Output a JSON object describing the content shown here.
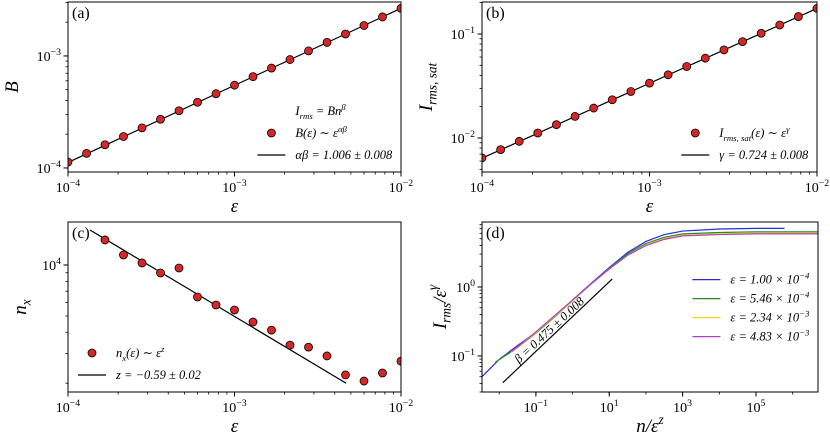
{
  "chart_data": [
    {
      "type": "scatter",
      "title": "(a)",
      "xlabel": [
        {
          "t": "ε"
        }
      ],
      "ylabel": [
        {
          "t": "B"
        }
      ],
      "xscale": "log",
      "yscale": "log",
      "xlim": [
        0.0001,
        0.01
      ],
      "ylim": [
        9.2e-05,
        0.00303
      ],
      "xticks": [
        {
          "value": 0.0001,
          "label": [
            {
              "t": "10"
            },
            {
              "sup": "−4"
            }
          ]
        },
        {
          "value": 0.001,
          "label": [
            {
              "t": "10"
            },
            {
              "sup": "−3"
            }
          ]
        },
        {
          "value": 0.01,
          "label": [
            {
              "t": "10"
            },
            {
              "sup": "−2"
            }
          ]
        }
      ],
      "yticks": [
        {
          "value": 0.0001,
          "label": [
            {
              "t": "10"
            },
            {
              "sup": "−4"
            }
          ]
        },
        {
          "value": 0.001,
          "label": [
            {
              "t": "10"
            },
            {
              "sup": "−3"
            }
          ]
        }
      ],
      "legend": "lower right",
      "legend_title": [
        {
          "t": "I"
        },
        {
          "sub": "rms"
        },
        {
          "t": " = Bn"
        },
        {
          "sup": "β"
        }
      ],
      "series": [
        {
          "name": [
            {
              "t": "B(ε) ∼ ε"
            },
            {
              "sup": "αβ"
            }
          ],
          "marker": "circle",
          "color": "#d62728",
          "edgecolor": "#000000",
          "x": [
            0.0001,
            0.0001292,
            0.0001668,
            0.0002154,
            0.0002783,
            0.0003594,
            0.0004642,
            0.0005995,
            0.0007743,
            0.001,
            0.001292,
            0.001668,
            0.002154,
            0.002783,
            0.003594,
            0.004642,
            0.005995,
            0.007743,
            0.01
          ],
          "values": [
            0.000113,
            0.000135,
            0.000161,
            0.000191,
            0.000228,
            0.000272,
            0.000324,
            0.000386,
            0.00046,
            0.000548,
            0.000653,
            0.000779,
            0.000928,
            0.00111,
            0.00132,
            0.00157,
            0.00187,
            0.00223,
            0.00266
          ]
        },
        {
          "name": [
            {
              "t": "αβ = 1.006 ± 0.008"
            }
          ],
          "marker": "line",
          "color": "#000000",
          "x": [
            0.0001,
            0.01
          ],
          "values": [
            0.000112,
            0.00266
          ]
        }
      ]
    },
    {
      "type": "scatter",
      "title": "(b)",
      "xlabel": [
        {
          "t": "ε"
        }
      ],
      "ylabel": [
        {
          "t": "I"
        },
        {
          "sub": "rms, sat"
        }
      ],
      "xscale": "log",
      "yscale": "log",
      "xlim": [
        0.0001,
        0.01
      ],
      "ylim": [
        0.00471,
        0.203
      ],
      "xticks": [
        {
          "value": 0.0001,
          "label": [
            {
              "t": "10"
            },
            {
              "sup": "−4"
            }
          ]
        },
        {
          "value": 0.001,
          "label": [
            {
              "t": "10"
            },
            {
              "sup": "−3"
            }
          ]
        },
        {
          "value": 0.01,
          "label": [
            {
              "t": "10"
            },
            {
              "sup": "−2"
            }
          ]
        }
      ],
      "yticks": [
        {
          "value": 0.01,
          "label": [
            {
              "t": "10"
            },
            {
              "sup": "−2"
            }
          ]
        },
        {
          "value": 0.1,
          "label": [
            {
              "t": "10"
            },
            {
              "sup": "−1"
            }
          ]
        }
      ],
      "legend": "lower right",
      "series": [
        {
          "name": [
            {
              "t": "I"
            },
            {
              "sub": "rms, sat"
            },
            {
              "t": "(ε) ∼ ε"
            },
            {
              "sup": "γ"
            }
          ],
          "marker": "circle",
          "color": "#d62728",
          "edgecolor": "#000000",
          "x": [
            0.0001,
            0.0001292,
            0.0001668,
            0.0002154,
            0.0002783,
            0.0003594,
            0.0004642,
            0.0005995,
            0.0007743,
            0.001,
            0.001292,
            0.001668,
            0.002154,
            0.002783,
            0.003594,
            0.004642,
            0.005995,
            0.007743,
            0.01
          ],
          "values": [
            0.00643,
            0.00773,
            0.00929,
            0.01117,
            0.01343,
            0.01614,
            0.0194,
            0.0233,
            0.028,
            0.0337,
            0.0405,
            0.0487,
            0.0585,
            0.0703,
            0.0845,
            0.1016,
            0.1221,
            0.147,
            0.176
          ]
        },
        {
          "name": [
            {
              "t": "γ = 0.724 ± 0.008"
            }
          ],
          "marker": "line",
          "color": "#000000",
          "x": [
            0.0001,
            0.01
          ],
          "values": [
            0.0064,
            0.176
          ]
        }
      ]
    },
    {
      "type": "scatter",
      "title": "(c)",
      "xlabel": [
        {
          "t": "ε"
        }
      ],
      "ylabel": [
        {
          "t": "n"
        },
        {
          "sub": "x"
        }
      ],
      "xscale": "log",
      "yscale": "log",
      "xlim": [
        0.0001,
        0.01
      ],
      "ylim": [
        1775,
        17950
      ],
      "xticks": [
        {
          "value": 0.0001,
          "label": [
            {
              "t": "10"
            },
            {
              "sup": "−4"
            }
          ]
        },
        {
          "value": 0.001,
          "label": [
            {
              "t": "10"
            },
            {
              "sup": "−3"
            }
          ]
        },
        {
          "value": 0.01,
          "label": [
            {
              "t": "10"
            },
            {
              "sup": "−2"
            }
          ]
        }
      ],
      "yticks": [
        {
          "value": 10000,
          "label": [
            {
              "t": "10"
            },
            {
              "sup": "4"
            }
          ]
        }
      ],
      "legend": "lower left",
      "series": [
        {
          "name": [
            {
              "t": "n"
            },
            {
              "sub": "x"
            },
            {
              "t": "(ε) ∼ ε"
            },
            {
              "sup": "z"
            }
          ],
          "marker": "circle",
          "color": "#d62728",
          "edgecolor": "#000000",
          "x": [
            0.0001668,
            0.0002154,
            0.0002783,
            0.0003594,
            0.0004642,
            0.0005995,
            0.0007743,
            0.001,
            0.001292,
            0.001668,
            0.002154,
            0.002783,
            0.003594,
            0.004642,
            0.005995,
            0.007743,
            0.01
          ],
          "values": [
            14060,
            11460,
            10280,
            8970,
            9600,
            6470,
            5800,
            5420,
            4600,
            4120,
            3360,
            3270,
            2900,
            2240,
            2060,
            2300,
            2700
          ]
        },
        {
          "name": [
            {
              "t": "z = −0.59 ± 0.02"
            }
          ],
          "marker": "line",
          "color": "#000000",
          "x": [
            0.0001355,
            0.00468
          ],
          "values": [
            16100,
            2000
          ]
        }
      ]
    },
    {
      "type": "line",
      "title": "(d)",
      "xlabel": [
        {
          "t": "n/ε"
        },
        {
          "sup": "z"
        }
      ],
      "ylabel": [
        {
          "t": "I"
        },
        {
          "sub": "rms"
        },
        {
          "t": "/ε"
        },
        {
          "sup": "γ"
        }
      ],
      "xscale": "log",
      "yscale": "log",
      "xlim": [
        0.0034,
        4900000
      ],
      "ylim": [
        0.03,
        8.75
      ],
      "xticks": [
        {
          "value": 0.1,
          "label": [
            {
              "t": "10"
            },
            {
              "sup": "−1"
            }
          ]
        },
        {
          "value": 10,
          "label": [
            {
              "t": "10"
            },
            {
              "sup": "1"
            }
          ]
        },
        {
          "value": 1000,
          "label": [
            {
              "t": "10"
            },
            {
              "sup": "3"
            }
          ]
        },
        {
          "value": 100000,
          "label": [
            {
              "t": "10"
            },
            {
              "sup": "5"
            }
          ]
        }
      ],
      "yticks": [
        {
          "value": 0.1,
          "label": [
            {
              "t": "10"
            },
            {
              "sup": "−1"
            }
          ]
        },
        {
          "value": 1,
          "label": [
            {
              "t": "10"
            },
            {
              "sup": "0"
            }
          ]
        }
      ],
      "legend": "center right",
      "annotations": [
        {
          "text": "β = 0.475 ± 0.008"
        }
      ],
      "series": [
        {
          "name": [
            {
              "t": "ε = 1.00 × 10"
            },
            {
              "sup": "−4"
            }
          ],
          "marker": "line",
          "color": "#2a2ad6",
          "x": [
            0.0034,
            0.01,
            0.0316,
            0.1,
            0.316,
            1,
            3.16,
            10,
            31.6,
            100,
            316,
            1000,
            10000,
            100000,
            600000
          ],
          "values": [
            0.05,
            0.089,
            0.141,
            0.219,
            0.372,
            0.646,
            1.12,
            1.91,
            3.16,
            4.57,
            5.75,
            6.46,
            6.92,
            7.08,
            7.08
          ]
        },
        {
          "name": [
            {
              "t": "ε = 5.46 × 10"
            },
            {
              "sup": "−4"
            }
          ],
          "marker": "line",
          "color": "#228b22",
          "x": [
            0.0078,
            0.0316,
            0.1,
            0.316,
            1,
            3.16,
            10,
            31.6,
            100,
            316,
            1000,
            10000,
            100000,
            4900000
          ],
          "values": [
            0.081,
            0.132,
            0.214,
            0.363,
            0.631,
            1.1,
            1.86,
            3.02,
            4.27,
            5.25,
            5.89,
            6.17,
            6.31,
            6.31
          ]
        },
        {
          "name": [
            {
              "t": "ε = 2.34 × 10"
            },
            {
              "sup": "−3"
            }
          ],
          "marker": "line",
          "color": "#f0d020",
          "x": [
            0.021,
            0.0316,
            0.1,
            0.316,
            1,
            3.16,
            10,
            31.6,
            100,
            316,
            1000,
            10000,
            100000,
            4900000
          ],
          "values": [
            0.112,
            0.132,
            0.219,
            0.372,
            0.631,
            1.1,
            1.82,
            2.88,
            4.07,
            5.01,
            5.62,
            5.89,
            6.03,
            6.03
          ]
        },
        {
          "name": [
            {
              "t": "ε = 4.83 × 10"
            },
            {
              "sup": "−3"
            }
          ],
          "marker": "line",
          "color": "#b040c8",
          "x": [
            0.022,
            0.0316,
            0.1,
            0.316,
            1,
            3.16,
            10,
            31.6,
            100,
            316,
            1000,
            10000,
            100000,
            4900000
          ],
          "values": [
            0.117,
            0.135,
            0.224,
            0.38,
            0.646,
            1.1,
            1.82,
            2.88,
            3.98,
            4.9,
            5.5,
            5.75,
            5.89,
            5.89
          ]
        },
        {
          "marker": "line",
          "color": "#000000",
          "x": [
            0.0126,
            12.1
          ],
          "values": [
            0.041,
            1.31
          ]
        }
      ]
    }
  ]
}
